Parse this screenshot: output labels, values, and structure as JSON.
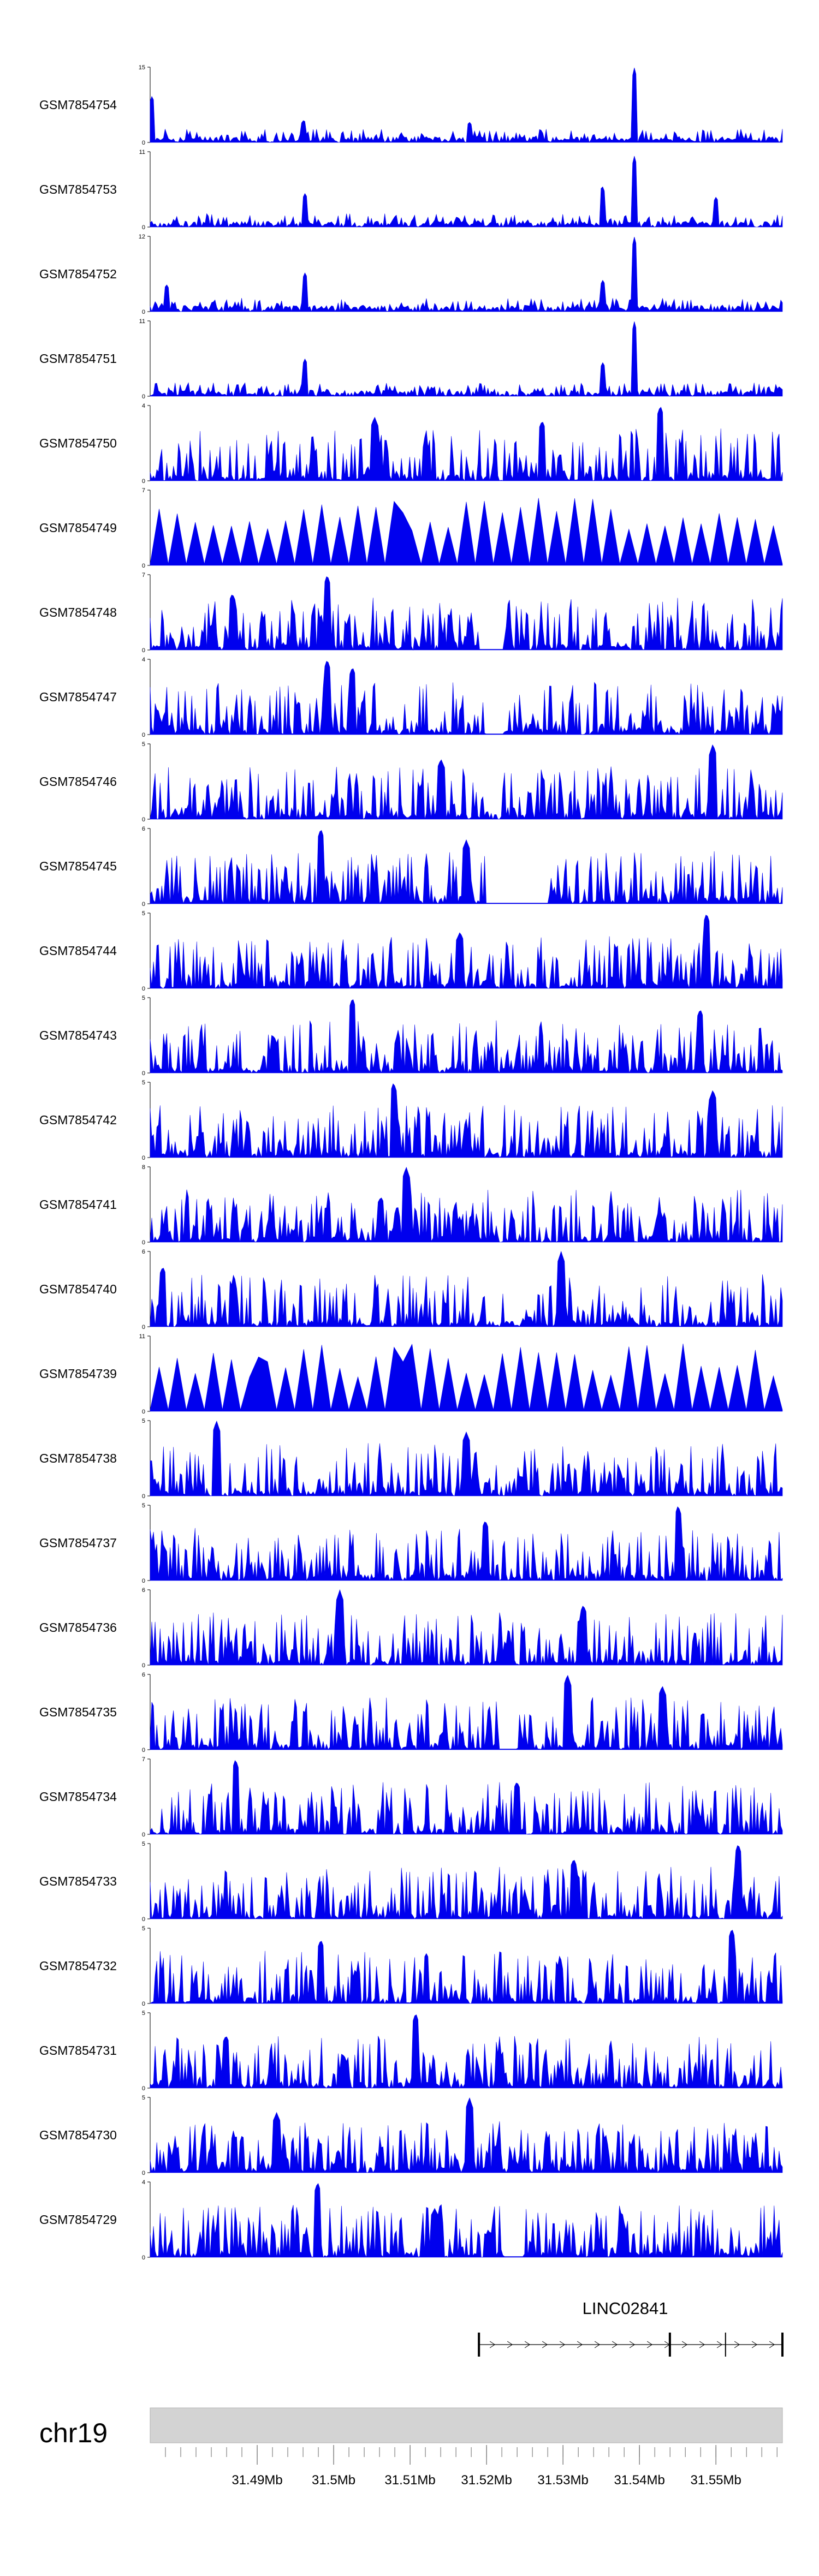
{
  "chart_data": {
    "type": "area",
    "fill_color": "#0000ee",
    "tracks": [
      {
        "name": "GSM7854754",
        "ymax": "15",
        "ymin": "0",
        "seed": 54,
        "peaks": [
          [
            0.766,
            1.0
          ],
          [
            0.505,
            0.27
          ],
          [
            0.243,
            0.3
          ],
          [
            0.003,
            0.62
          ]
        ]
      },
      {
        "name": "GSM7854753",
        "ymax": "11",
        "ymin": "0",
        "seed": 53,
        "peaks": [
          [
            0.766,
            0.95
          ],
          [
            0.715,
            0.55
          ],
          [
            0.245,
            0.45
          ],
          [
            0.895,
            0.4
          ]
        ]
      },
      {
        "name": "GSM7854752",
        "ymax": "12",
        "ymin": "0",
        "seed": 52,
        "peaks": [
          [
            0.766,
            1.0
          ],
          [
            0.716,
            0.42
          ],
          [
            0.245,
            0.52
          ],
          [
            0.026,
            0.36
          ]
        ]
      },
      {
        "name": "GSM7854751",
        "ymax": "11",
        "ymin": "0",
        "seed": 51,
        "peaks": [
          [
            0.766,
            1.0
          ],
          [
            0.716,
            0.45
          ],
          [
            0.245,
            0.5
          ]
        ]
      },
      {
        "name": "GSM7854750",
        "ymax": "4",
        "ymin": "0",
        "seed": 50,
        "peaks": [
          [
            0.807,
            1.0
          ],
          [
            0.355,
            0.85
          ],
          [
            0.62,
            0.8
          ]
        ]
      },
      {
        "name": "GSM7854749",
        "ymax": "7",
        "ymin": "0",
        "seed": 49,
        "peaks": [
          [
            0.15,
            1.0
          ],
          [
            0.405,
            0.8
          ]
        ],
        "sparse": true
      },
      {
        "name": "GSM7854748",
        "ymax": "7",
        "ymin": "0",
        "seed": 48,
        "peaks": [
          [
            0.28,
            1.0
          ],
          [
            0.13,
            0.75
          ]
        ],
        "gap": [
          0.52,
          0.56
        ]
      },
      {
        "name": "GSM7854747",
        "ymax": "4",
        "ymin": "0",
        "seed": 47,
        "peaks": [
          [
            0.28,
            1.0
          ],
          [
            0.32,
            0.9
          ]
        ],
        "gap": [
          0.53,
          0.56
        ]
      },
      {
        "name": "GSM7854746",
        "ymax": "5",
        "ymin": "0",
        "seed": 46,
        "peaks": [
          [
            0.89,
            1.0
          ],
          [
            0.46,
            0.8
          ]
        ]
      },
      {
        "name": "GSM7854745",
        "ymax": "6",
        "ymin": "0",
        "seed": 45,
        "peaks": [
          [
            0.27,
            1.0
          ],
          [
            0.5,
            0.85
          ]
        ],
        "gap": [
          0.53,
          0.63
        ]
      },
      {
        "name": "GSM7854744",
        "ymax": "5",
        "ymin": "0",
        "seed": 44,
        "peaks": [
          [
            0.88,
            1.0
          ],
          [
            0.49,
            0.75
          ]
        ]
      },
      {
        "name": "GSM7854743",
        "ymax": "5",
        "ymin": "0",
        "seed": 43,
        "peaks": [
          [
            0.32,
            1.0
          ],
          [
            0.87,
            0.85
          ]
        ]
      },
      {
        "name": "GSM7854742",
        "ymax": "5",
        "ymin": "0",
        "seed": 42,
        "peaks": [
          [
            0.385,
            1.0
          ],
          [
            0.89,
            0.9
          ]
        ]
      },
      {
        "name": "GSM7854741",
        "ymax": "8",
        "ymin": "0",
        "seed": 41,
        "peaks": [
          [
            0.405,
            1.0
          ],
          [
            0.365,
            0.6
          ]
        ]
      },
      {
        "name": "GSM7854740",
        "ymax": "6",
        "ymin": "0",
        "seed": 40,
        "peaks": [
          [
            0.65,
            1.0
          ],
          [
            0.02,
            0.8
          ]
        ]
      },
      {
        "name": "GSM7854739",
        "ymax": "11",
        "ymin": "0",
        "seed": 39,
        "peaks": [
          [
            0.17,
            0.75
          ],
          [
            0.405,
            0.75
          ]
        ],
        "sparse": true
      },
      {
        "name": "GSM7854738",
        "ymax": "5",
        "ymin": "0",
        "seed": 38,
        "peaks": [
          [
            0.105,
            1.0
          ],
          [
            0.5,
            0.85
          ]
        ]
      },
      {
        "name": "GSM7854737",
        "ymax": "5",
        "ymin": "0",
        "seed": 37,
        "peaks": [
          [
            0.835,
            1.0
          ],
          [
            0.53,
            0.8
          ]
        ]
      },
      {
        "name": "GSM7854736",
        "ymax": "6",
        "ymin": "0",
        "seed": 36,
        "peaks": [
          [
            0.3,
            1.0
          ],
          [
            0.685,
            0.8
          ]
        ]
      },
      {
        "name": "GSM7854735",
        "ymax": "6",
        "ymin": "0",
        "seed": 35,
        "peaks": [
          [
            0.66,
            1.0
          ],
          [
            0.81,
            0.85
          ]
        ],
        "gap": [
          0.55,
          0.58
        ]
      },
      {
        "name": "GSM7854734",
        "ymax": "7",
        "ymin": "0",
        "seed": 34,
        "peaks": [
          [
            0.135,
            1.0
          ],
          [
            0.58,
            0.7
          ]
        ]
      },
      {
        "name": "GSM7854733",
        "ymax": "5",
        "ymin": "0",
        "seed": 33,
        "peaks": [
          [
            0.93,
            1.0
          ],
          [
            0.67,
            0.8
          ]
        ]
      },
      {
        "name": "GSM7854732",
        "ymax": "5",
        "ymin": "0",
        "seed": 32,
        "peaks": [
          [
            0.92,
            1.0
          ],
          [
            0.27,
            0.85
          ]
        ]
      },
      {
        "name": "GSM7854731",
        "ymax": "5",
        "ymin": "0",
        "seed": 31,
        "peaks": [
          [
            0.42,
            1.0
          ],
          [
            0.12,
            0.7
          ]
        ]
      },
      {
        "name": "GSM7854730",
        "ymax": "5",
        "ymin": "0",
        "seed": 30,
        "peaks": [
          [
            0.505,
            1.0
          ],
          [
            0.2,
            0.8
          ]
        ]
      },
      {
        "name": "GSM7854729",
        "ymax": "4",
        "ymin": "0",
        "seed": 29,
        "peaks": [
          [
            0.265,
            1.0
          ],
          [
            0.45,
            0.65
          ]
        ],
        "gap": [
          0.56,
          0.59
        ]
      }
    ],
    "gene": {
      "name": "LINC02841",
      "start_frac": 0.52,
      "end_frac": 1.0,
      "exon_fracs": [
        0.52,
        0.822,
        0.91,
        1.0
      ]
    },
    "chromosome": "chr19",
    "axis": {
      "range_mb": [
        31.476,
        31.5587
      ],
      "tick_labels": [
        "31.49Mb",
        "31.5Mb",
        "31.51Mb",
        "31.52Mb",
        "31.53Mb",
        "31.54Mb",
        "31.55Mb"
      ],
      "tick_values_mb": [
        31.49,
        31.5,
        31.51,
        31.52,
        31.53,
        31.54,
        31.55
      ],
      "minor_tick_step_mb": 0.002
    }
  }
}
